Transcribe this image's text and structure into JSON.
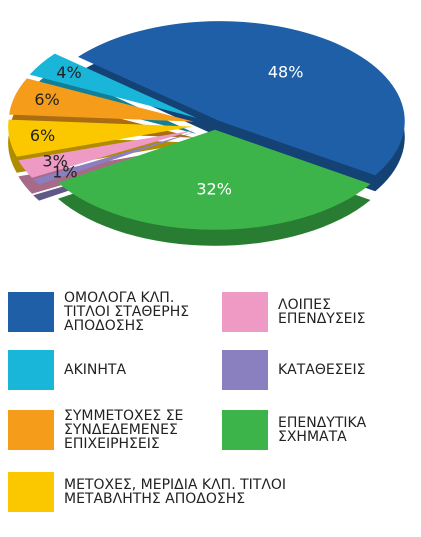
{
  "chart_data": {
    "type": "pie",
    "series": [
      {
        "name": "ΟΜΟΛΟΓΑ ΚΛΠ. ΤΙΤΛΟΙ ΣΤΑΘΕΡΗΣ ΑΠΟΔΟΣΗΣ",
        "color": "#1f5fa8",
        "value": 48,
        "value_label": "48%"
      },
      {
        "name": "ΕΠΕΝΔΥΤΙΚΑ ΣΧΗΜΑΤΑ",
        "color": "#3cb44a",
        "value": 32,
        "value_label": "32%"
      },
      {
        "name": "ΚΑΤΑΘΕΣΕΙΣ",
        "color": "#8a7fbf",
        "value": 1,
        "value_label": "1%"
      },
      {
        "name": "ΛΟΙΠΕΣ ΕΠΕΝΔΥΣΕΙΣ",
        "color": "#ef9ac4",
        "value": 3,
        "value_label": "3%"
      },
      {
        "name": "ΜΕΤΟΧΕΣ, ΜΕΡΙΔΙΑ ΚΛΠ. ΤΙΤΛΟΙ ΜΕΤΑΒΛΗΤΗΣ ΑΠΟΔΟΣΗΣ",
        "color": "#fbc800",
        "value": 6,
        "value_label": "6%"
      },
      {
        "name": "ΣΥΜΜΕΤΟΧΕΣ ΣΕ ΣΥΝΔΕΔΕΜΕΝΕΣ ΕΠΙΧΕΙΡΗΣΕΙΣ",
        "color": "#f59c1a",
        "value": 6,
        "value_label": "6%"
      },
      {
        "name": "ΑΚΙΝΗΤΑ",
        "color": "#19b6d9",
        "value": 4,
        "value_label": "4%"
      }
    ]
  }
}
